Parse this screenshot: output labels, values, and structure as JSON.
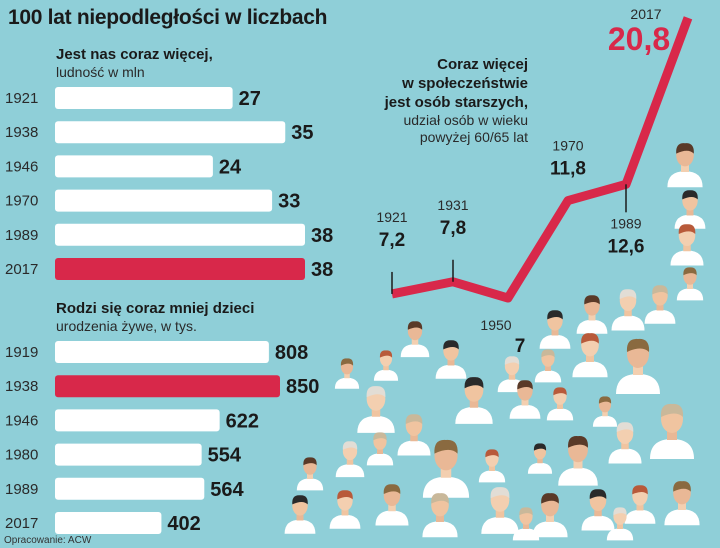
{
  "title": "100 lat niepodległości w liczbach",
  "colors": {
    "background": "#8fcfd8",
    "bar": "#ffffff",
    "highlight": "#d8284a",
    "text": "#1a1a1a"
  },
  "chart_data": [
    {
      "type": "bar",
      "orientation": "horizontal",
      "title": "Jest nas coraz więcej,",
      "subtitle": "ludność w mln",
      "categories": [
        "1921",
        "1938",
        "1946",
        "1970",
        "1989",
        "2017"
      ],
      "values": [
        27,
        35,
        24,
        33,
        38,
        38
      ],
      "value_labels": [
        "27",
        "35",
        "24",
        "33",
        "38",
        "38"
      ],
      "highlight_category": "2017"
    },
    {
      "type": "bar",
      "orientation": "horizontal",
      "title": "Rodzi się coraz mniej dzieci",
      "subtitle": "urodzenia żywe, w tys.",
      "categories": [
        "1919",
        "1938",
        "1946",
        "1980",
        "1989",
        "2017"
      ],
      "values": [
        808,
        850,
        622,
        554,
        564,
        402
      ],
      "value_labels": [
        "808",
        "850",
        "622",
        "554",
        "564",
        "402"
      ],
      "highlight_category": "1938"
    },
    {
      "type": "line",
      "title_lines": [
        "Coraz więcej",
        "w społeczeństwie",
        "jest osób starszych,"
      ],
      "subtitle_lines": [
        "udział osób w wieku",
        "powyżej 60/65 lat"
      ],
      "x": [
        "1921",
        "1931",
        "1950",
        "1970",
        "1989",
        "2017"
      ],
      "values": [
        7.2,
        7.8,
        7,
        11.8,
        12.6,
        20.8
      ],
      "value_labels": [
        "7,2",
        "7,8",
        "7",
        "11,8",
        "12,6",
        "20,8"
      ],
      "highlight_x": "2017"
    }
  ],
  "footer": "Opracowanie: ACW"
}
